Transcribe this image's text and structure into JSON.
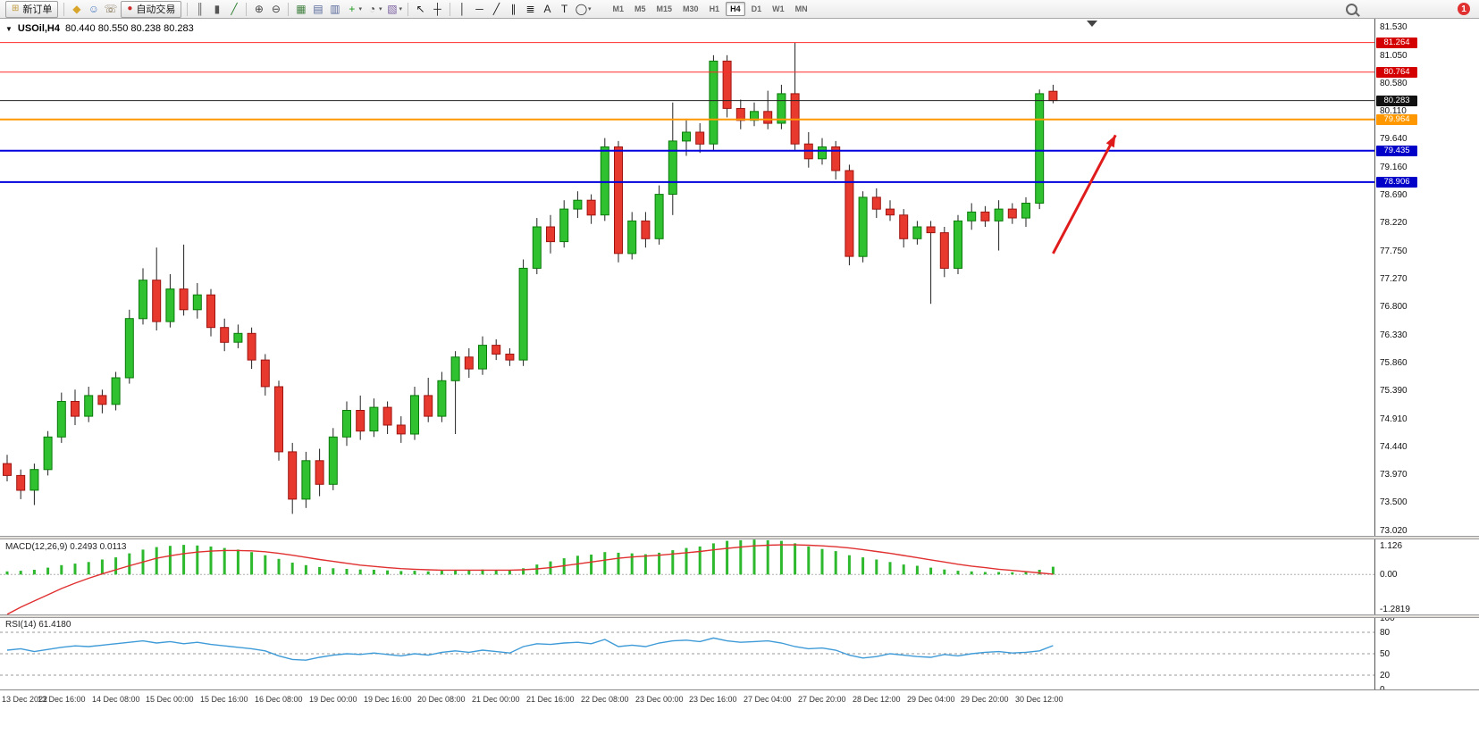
{
  "toolbar": {
    "new_order": "新订单",
    "autotrading": "自动交易",
    "caret_glyph": "▾",
    "notification_count": "1",
    "timeframes": [
      "M1",
      "M5",
      "M15",
      "M30",
      "H1",
      "H4",
      "D1",
      "W1",
      "MN"
    ],
    "active_timeframe": "H4",
    "items": [
      {
        "t": "btn",
        "name": "new-order-button",
        "icon": "new-order-icon",
        "glyph": "⊞",
        "gc": "#c09a3e",
        "label_key": "new_order"
      },
      {
        "t": "sep"
      },
      {
        "t": "icon",
        "name": "layers-icon",
        "glyph": "◆",
        "gc": "#d8a429"
      },
      {
        "t": "icon",
        "name": "community-icon",
        "glyph": "☺",
        "gc": "#4d7cc0"
      },
      {
        "t": "icon",
        "name": "support-icon",
        "glyph": "☏",
        "gc": "#7a6a4a"
      },
      {
        "t": "btn",
        "name": "autotrading-button",
        "icon": "autotrading-status-icon",
        "glyph": "●",
        "gc": "#cc2b2b",
        "label_key": "autotrading"
      },
      {
        "t": "sep"
      },
      {
        "t": "icon",
        "name": "bar-chart-icon",
        "glyph": "║",
        "gc": "#555555"
      },
      {
        "t": "icon",
        "name": "candlestick-icon",
        "glyph": "▮",
        "gc": "#555555"
      },
      {
        "t": "icon",
        "name": "line-chart-icon",
        "glyph": "╱",
        "gc": "#2c7d2c"
      },
      {
        "t": "sep"
      },
      {
        "t": "icon",
        "name": "zoom-in-icon",
        "glyph": "⊕",
        "gc": "#444444"
      },
      {
        "t": "icon",
        "name": "zoom-out-icon",
        "glyph": "⊖",
        "gc": "#444444"
      },
      {
        "t": "sep"
      },
      {
        "t": "icon",
        "name": "tile-windows-icon",
        "glyph": "▦",
        "gc": "#3f7f3f"
      },
      {
        "t": "icon",
        "name": "cascade-windows-icon",
        "glyph": "▤",
        "gc": "#556699"
      },
      {
        "t": "icon",
        "name": "tile-vertical-icon",
        "glyph": "▥",
        "gc": "#556699"
      },
      {
        "t": "icon",
        "name": "add-indicator-icon",
        "glyph": "+",
        "gc": "#1f9a1f",
        "caret": true
      },
      {
        "t": "icon",
        "name": "periods-icon",
        "glyph": "◔",
        "gc": "#444444",
        "caret": true
      },
      {
        "t": "icon",
        "name": "templates-icon",
        "glyph": "▧",
        "gc": "#7a5fa0",
        "caret": true
      },
      {
        "t": "sep"
      },
      {
        "t": "icon",
        "name": "cursor-icon",
        "glyph": "↖",
        "gc": "#222222"
      },
      {
        "t": "icon",
        "name": "crosshair-icon",
        "glyph": "┼",
        "gc": "#222222"
      },
      {
        "t": "sep"
      },
      {
        "t": "icon",
        "name": "vertical-line-icon",
        "glyph": "│",
        "gc": "#222222"
      },
      {
        "t": "icon",
        "name": "horizontal-line-icon",
        "glyph": "─",
        "gc": "#222222"
      },
      {
        "t": "icon",
        "name": "trendline-icon",
        "glyph": "╱",
        "gc": "#222222"
      },
      {
        "t": "icon",
        "name": "channel-icon",
        "glyph": "∥",
        "gc": "#222222"
      },
      {
        "t": "icon",
        "name": "fibonacci-icon",
        "glyph": "≣",
        "gc": "#222222"
      },
      {
        "t": "icon",
        "name": "text-icon",
        "glyph": "A",
        "gc": "#222222"
      },
      {
        "t": "icon",
        "name": "label-icon",
        "glyph": "T",
        "gc": "#222222"
      },
      {
        "t": "icon",
        "name": "shapes-icon",
        "glyph": "◯",
        "gc": "#222222",
        "caret": true
      },
      {
        "t": "gap"
      }
    ]
  },
  "chart": {
    "header": {
      "dropdown_glyph": "▼",
      "symbol": "USOil,H4",
      "ohlc": "80.440 80.550 80.238 80.283"
    }
  },
  "chart_data": {
    "type": "candlestick",
    "symbol": "USOil",
    "period": "H4",
    "ohlc_current": {
      "open": 80.44,
      "high": 80.55,
      "low": 80.238,
      "close": 80.283
    },
    "colors": {
      "up": "#2fc12f",
      "up_border": "#0a7a0a",
      "down": "#e8392e",
      "down_border": "#9e1410",
      "wick": "#222222",
      "macd_hist": "#2db82d",
      "macd_signal": "#e03030",
      "rsi_line": "#3f9bd8",
      "arrow": "#e01b1b"
    },
    "y_axis": {
      "min": 73.02,
      "max": 81.53,
      "ticks": [
        "81.530",
        "81.050",
        "80.580",
        "80.110",
        "79.640",
        "79.160",
        "78.690",
        "78.220",
        "77.750",
        "77.270",
        "76.800",
        "76.330",
        "75.860",
        "75.390",
        "74.910",
        "74.440",
        "73.970",
        "73.500",
        "73.020"
      ]
    },
    "price_badges": [
      {
        "label": "81.264",
        "color": "#d40000"
      },
      {
        "label": "80.764",
        "color": "#d40000"
      },
      {
        "label": "80.283",
        "color": "#111111"
      },
      {
        "label": "79.964",
        "color": "#ff9800"
      },
      {
        "label": "79.435",
        "color": "#0000c8"
      },
      {
        "label": "78.906",
        "color": "#0000c8"
      }
    ],
    "horizontal_lines": [
      {
        "name": "resistance-line-upper",
        "price": 81.264,
        "color": "#ff2a2a",
        "width": 1
      },
      {
        "name": "resistance-line-lower",
        "price": 80.764,
        "color": "#ff2a2a",
        "width": 1
      },
      {
        "name": "pivot-line",
        "price": 79.964,
        "color": "#ff9800",
        "width": 2
      },
      {
        "name": "support-line-upper",
        "price": 79.435,
        "color": "#0000dd",
        "width": 2
      },
      {
        "name": "support-line-lower",
        "price": 78.906,
        "color": "#0000dd",
        "width": 2
      },
      {
        "name": "bid-line",
        "price": 80.283,
        "color": "#222222",
        "width": 1
      }
    ],
    "arrow": {
      "from_bar": 77.0,
      "from_price": 77.7,
      "to_bar": 81.6,
      "to_price": 79.7,
      "color": "#e01b1b"
    },
    "x_labels": [
      "13 Dec 2022",
      "13 Dec 16:00",
      "14 Dec 08:00",
      "15 Dec 00:00",
      "15 Dec 16:00",
      "16 Dec 08:00",
      "19 Dec 00:00",
      "19 Dec 16:00",
      "20 Dec 08:00",
      "21 Dec 00:00",
      "21 Dec 16:00",
      "22 Dec 08:00",
      "23 Dec 00:00",
      "23 Dec 16:00",
      "27 Dec 04:00",
      "27 Dec 20:00",
      "28 Dec 12:00",
      "29 Dec 04:00",
      "29 Dec 20:00",
      "30 Dec 12:00"
    ],
    "bars_per_label": 4,
    "candles": [
      [
        74.15,
        74.3,
        73.85,
        73.95
      ],
      [
        73.95,
        74.05,
        73.55,
        73.7
      ],
      [
        73.7,
        74.15,
        73.45,
        74.05
      ],
      [
        74.05,
        74.7,
        73.95,
        74.6
      ],
      [
        74.6,
        75.35,
        74.5,
        75.2
      ],
      [
        75.2,
        75.4,
        74.8,
        74.95
      ],
      [
        74.95,
        75.45,
        74.85,
        75.3
      ],
      [
        75.3,
        75.4,
        75.0,
        75.15
      ],
      [
        75.15,
        75.7,
        75.05,
        75.6
      ],
      [
        75.6,
        76.75,
        75.5,
        76.6
      ],
      [
        76.6,
        77.45,
        76.5,
        77.25
      ],
      [
        77.25,
        77.8,
        76.4,
        76.55
      ],
      [
        76.55,
        77.35,
        76.45,
        77.1
      ],
      [
        77.1,
        77.85,
        76.65,
        76.75
      ],
      [
        76.75,
        77.2,
        76.6,
        77.0
      ],
      [
        77.0,
        77.1,
        76.3,
        76.45
      ],
      [
        76.45,
        76.6,
        76.05,
        76.2
      ],
      [
        76.2,
        76.5,
        76.1,
        76.35
      ],
      [
        76.35,
        76.45,
        75.75,
        75.9
      ],
      [
        75.9,
        76.0,
        75.3,
        75.45
      ],
      [
        75.45,
        75.55,
        74.2,
        74.35
      ],
      [
        74.35,
        74.5,
        73.3,
        73.55
      ],
      [
        73.55,
        74.35,
        73.4,
        74.2
      ],
      [
        74.2,
        74.4,
        73.6,
        73.8
      ],
      [
        73.8,
        74.75,
        73.7,
        74.6
      ],
      [
        74.6,
        75.2,
        74.45,
        75.05
      ],
      [
        75.05,
        75.3,
        74.55,
        74.7
      ],
      [
        74.7,
        75.25,
        74.6,
        75.1
      ],
      [
        75.1,
        75.2,
        74.65,
        74.8
      ],
      [
        74.8,
        74.95,
        74.5,
        74.65
      ],
      [
        74.65,
        75.45,
        74.55,
        75.3
      ],
      [
        75.3,
        75.6,
        74.85,
        74.95
      ],
      [
        74.95,
        75.7,
        74.85,
        75.55
      ],
      [
        75.55,
        76.05,
        74.65,
        75.95
      ],
      [
        75.95,
        76.1,
        75.6,
        75.75
      ],
      [
        75.75,
        76.3,
        75.65,
        76.15
      ],
      [
        76.15,
        76.25,
        75.9,
        76.0
      ],
      [
        76.0,
        76.1,
        75.8,
        75.9
      ],
      [
        75.9,
        77.6,
        75.8,
        77.45
      ],
      [
        77.45,
        78.3,
        77.35,
        78.15
      ],
      [
        78.15,
        78.35,
        77.7,
        77.9
      ],
      [
        77.9,
        78.6,
        77.8,
        78.45
      ],
      [
        78.45,
        78.75,
        78.3,
        78.6
      ],
      [
        78.6,
        78.7,
        78.2,
        78.35
      ],
      [
        78.35,
        79.65,
        78.25,
        79.5
      ],
      [
        79.5,
        79.6,
        77.55,
        77.7
      ],
      [
        77.7,
        78.4,
        77.6,
        78.25
      ],
      [
        78.25,
        78.4,
        77.8,
        77.95
      ],
      [
        77.95,
        78.85,
        77.85,
        78.7
      ],
      [
        78.7,
        80.25,
        78.35,
        79.6
      ],
      [
        79.6,
        79.95,
        79.35,
        79.75
      ],
      [
        79.75,
        79.9,
        79.4,
        79.55
      ],
      [
        79.55,
        81.05,
        79.45,
        80.95
      ],
      [
        80.95,
        81.05,
        80.0,
        80.15
      ],
      [
        80.15,
        80.3,
        79.8,
        79.95
      ],
      [
        79.95,
        80.25,
        79.85,
        80.1
      ],
      [
        80.1,
        80.45,
        79.8,
        79.9
      ],
      [
        79.9,
        80.55,
        79.8,
        80.4
      ],
      [
        80.4,
        81.26,
        79.45,
        79.55
      ],
      [
        79.55,
        79.75,
        79.15,
        79.3
      ],
      [
        79.3,
        79.65,
        79.2,
        79.5
      ],
      [
        79.5,
        79.6,
        78.95,
        79.1
      ],
      [
        79.1,
        79.2,
        77.5,
        77.65
      ],
      [
        77.65,
        78.75,
        77.55,
        78.65
      ],
      [
        78.65,
        78.8,
        78.3,
        78.45
      ],
      [
        78.45,
        78.6,
        78.25,
        78.35
      ],
      [
        78.35,
        78.45,
        77.8,
        77.95
      ],
      [
        77.95,
        78.25,
        77.85,
        78.15
      ],
      [
        78.15,
        78.25,
        76.85,
        78.05
      ],
      [
        78.05,
        78.15,
        77.3,
        77.45
      ],
      [
        77.45,
        78.35,
        77.35,
        78.25
      ],
      [
        78.25,
        78.55,
        78.1,
        78.4
      ],
      [
        78.4,
        78.5,
        78.15,
        78.25
      ],
      [
        78.25,
        78.6,
        77.75,
        78.45
      ],
      [
        78.45,
        78.55,
        78.2,
        78.3
      ],
      [
        78.3,
        78.65,
        78.15,
        78.55
      ],
      [
        78.55,
        80.47,
        78.45,
        80.4
      ],
      [
        80.44,
        80.55,
        80.238,
        80.283
      ]
    ],
    "macd": {
      "label": "MACD(12,26,9)",
      "values_text": "0.2493 0.0113",
      "main_value": 0.2493,
      "signal_value": 0.0113,
      "scale": {
        "min": -1.2819,
        "max": 1.126
      },
      "axis_labels": [
        "1.126",
        "0.00",
        "-1.2819"
      ],
      "histogram": [
        0.1,
        0.12,
        0.15,
        0.22,
        0.3,
        0.35,
        0.4,
        0.48,
        0.55,
        0.68,
        0.8,
        0.88,
        0.92,
        0.95,
        0.93,
        0.9,
        0.85,
        0.8,
        0.72,
        0.62,
        0.5,
        0.38,
        0.3,
        0.24,
        0.2,
        0.18,
        0.16,
        0.15,
        0.13,
        0.11,
        0.12,
        0.1,
        0.12,
        0.15,
        0.14,
        0.16,
        0.15,
        0.13,
        0.2,
        0.32,
        0.42,
        0.52,
        0.6,
        0.64,
        0.72,
        0.7,
        0.68,
        0.65,
        0.7,
        0.78,
        0.85,
        0.9,
        1.0,
        1.08,
        1.1,
        1.12,
        1.1,
        1.08,
        1.0,
        0.9,
        0.82,
        0.75,
        0.62,
        0.55,
        0.48,
        0.4,
        0.32,
        0.28,
        0.22,
        0.16,
        0.12,
        0.1,
        0.08,
        0.08,
        0.07,
        0.08,
        0.15,
        0.2493
      ],
      "signal": [
        -1.28,
        -1.05,
        -0.85,
        -0.65,
        -0.45,
        -0.28,
        -0.12,
        0.02,
        0.15,
        0.28,
        0.4,
        0.52,
        0.6,
        0.67,
        0.72,
        0.75,
        0.77,
        0.77,
        0.76,
        0.73,
        0.68,
        0.62,
        0.55,
        0.48,
        0.42,
        0.36,
        0.3,
        0.26,
        0.22,
        0.19,
        0.17,
        0.15,
        0.14,
        0.14,
        0.14,
        0.14,
        0.14,
        0.14,
        0.15,
        0.18,
        0.22,
        0.28,
        0.34,
        0.4,
        0.46,
        0.52,
        0.56,
        0.59,
        0.62,
        0.66,
        0.7,
        0.74,
        0.79,
        0.84,
        0.88,
        0.92,
        0.94,
        0.95,
        0.95,
        0.94,
        0.92,
        0.89,
        0.85,
        0.8,
        0.74,
        0.68,
        0.61,
        0.54,
        0.47,
        0.4,
        0.33,
        0.27,
        0.22,
        0.17,
        0.13,
        0.09,
        0.05,
        0.0113
      ]
    },
    "rsi": {
      "label": "RSI(14)",
      "value_text": "61.4180",
      "value": 61.418,
      "levels": [
        80,
        50,
        20
      ],
      "axis_labels": [
        "100",
        "80",
        "50",
        "20",
        "0"
      ],
      "values": [
        55,
        57,
        53,
        56,
        59,
        61,
        60,
        62,
        64,
        66,
        68,
        65,
        67,
        64,
        66,
        63,
        61,
        59,
        57,
        54,
        47,
        42,
        41,
        45,
        48,
        50,
        49,
        51,
        49,
        47,
        50,
        48,
        52,
        54,
        52,
        55,
        53,
        51,
        60,
        64,
        63,
        65,
        66,
        64,
        70,
        60,
        62,
        60,
        65,
        68,
        69,
        67,
        72,
        68,
        66,
        67,
        68,
        65,
        60,
        57,
        58,
        55,
        48,
        44,
        46,
        50,
        48,
        46,
        45,
        49,
        47,
        50,
        52,
        53,
        51,
        52,
        54,
        61.4
      ]
    }
  }
}
